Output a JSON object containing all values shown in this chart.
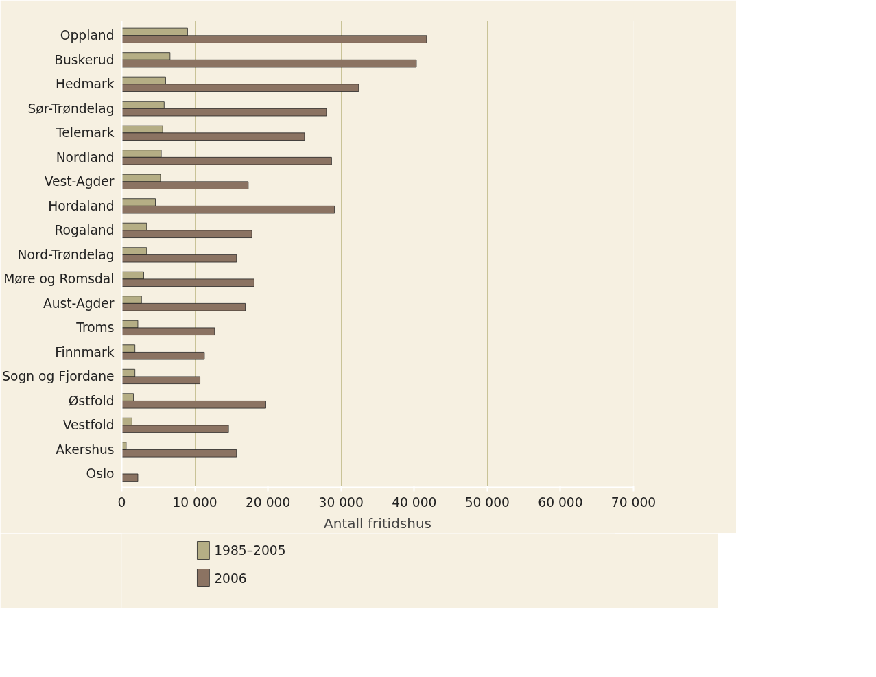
{
  "chart_data": {
    "type": "bar",
    "orientation": "horizontal",
    "xlabel": "Antall fritidshus",
    "categories": [
      "Oppland",
      "Buskerud",
      "Hedmark",
      "Sør-Trøndelag",
      "Telemark",
      "Nordland",
      "Vest-Agder",
      "Hordaland",
      "Rogaland",
      "Nord-Trøndelag",
      "Møre og Romsdal",
      "Aust-Agder",
      "Troms",
      "Finnmark",
      "Sogn og Fjordane",
      "Østfold",
      "Vestfold",
      "Akershus",
      "Oslo"
    ],
    "series": [
      {
        "name": "1985–2005",
        "color": "#b5ae85",
        "values": [
          9000,
          6600,
          6000,
          5800,
          5600,
          5400,
          5300,
          4600,
          3400,
          3400,
          3000,
          2700,
          2200,
          1800,
          1800,
          1600,
          1400,
          600,
          null
        ]
      },
      {
        "name": "2006",
        "color": "#8b7362",
        "values": [
          41700,
          40300,
          32400,
          28000,
          25000,
          28700,
          17300,
          29100,
          17800,
          15700,
          18100,
          16900,
          12700,
          11300,
          10700,
          19700,
          14600,
          15700,
          2200
        ]
      }
    ],
    "xlim": [
      0,
      70000
    ],
    "xticks": [
      {
        "value": 0,
        "label": "0"
      },
      {
        "value": 10000,
        "label": "10 000"
      },
      {
        "value": 20000,
        "label": "20 000"
      },
      {
        "value": 30000,
        "label": "30 000"
      },
      {
        "value": 40000,
        "label": "40 000"
      },
      {
        "value": 50000,
        "label": "50 000"
      },
      {
        "value": 60000,
        "label": "60 000"
      },
      {
        "value": 70000,
        "label": "70 000"
      }
    ],
    "grid": "x",
    "legend": "bottom left"
  }
}
